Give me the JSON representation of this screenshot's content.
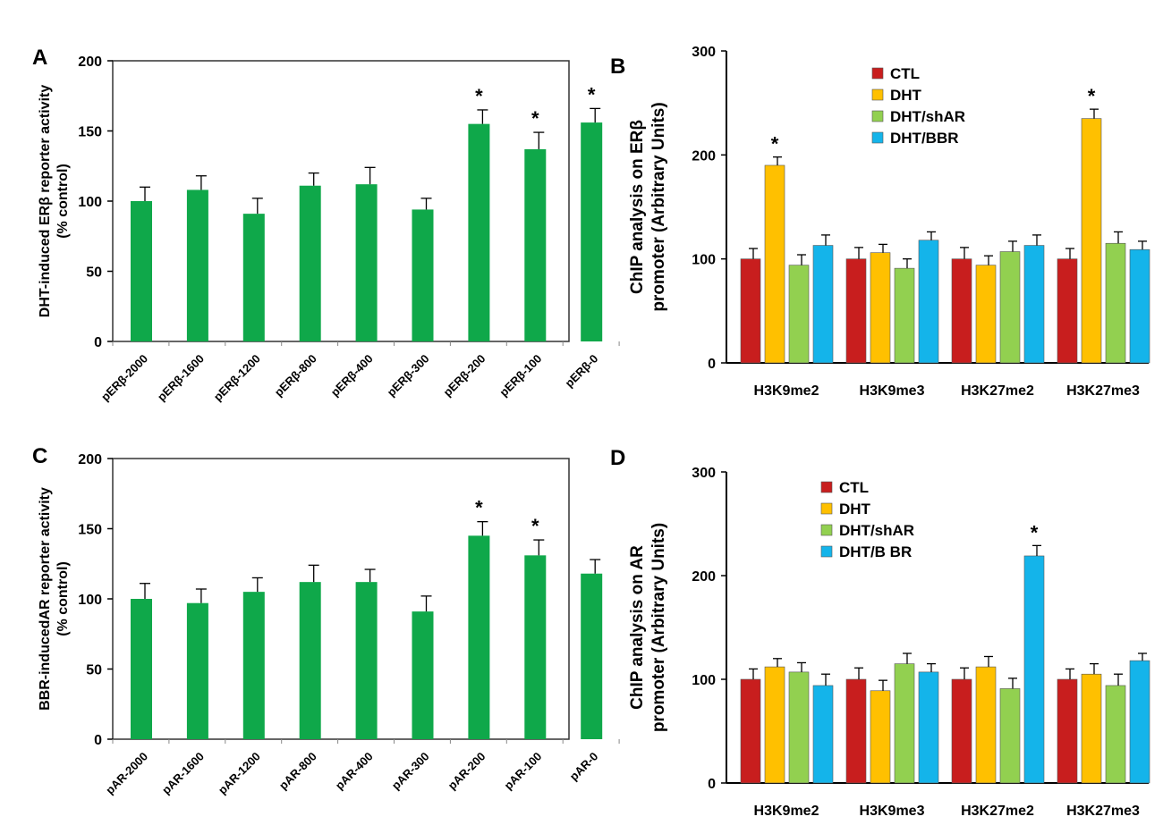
{
  "colors": {
    "green_bar": "#0fa84a",
    "CTL": "#c81e1e",
    "DHT": "#ffc000",
    "DHT/shAR": "#92d050",
    "DHT/BBR": "#14b4ea",
    "axis": "#000000"
  },
  "chart_data": [
    {
      "panel": "A",
      "type": "bar",
      "ylabel_lines": [
        "DHT-induced ERβ reporter activity",
        "(% control)"
      ],
      "ylim": [
        0,
        200
      ],
      "yticks": [
        0,
        50,
        100,
        150,
        200
      ],
      "categories": [
        "pERβ-2000",
        "pERβ-1600",
        "pERβ-1200",
        "pERβ-800",
        "pERβ-400",
        "pERβ-300",
        "pERβ-200",
        "pERβ-100",
        "pERβ-0"
      ],
      "values": [
        100,
        108,
        91,
        111,
        112,
        94,
        155,
        137,
        156
      ],
      "errors": [
        10,
        10,
        11,
        9,
        12,
        8,
        10,
        12,
        10
      ],
      "significance": [
        "",
        "",
        "",
        "",
        "",
        "",
        "*",
        "*",
        "*"
      ],
      "boxed": true
    },
    {
      "panel": "B",
      "type": "bar",
      "ylabel_lines": [
        "ChIP analysis on ERβ",
        "promoter (Arbitrary Units)"
      ],
      "ylim": [
        0,
        300
      ],
      "yticks": [
        0,
        100,
        200,
        300
      ],
      "categories": [
        "H3K9me2",
        "H3K9me3",
        "H3K27me2",
        "H3K27me3"
      ],
      "legend": [
        "CTL",
        "DHT",
        "DHT/shAR",
        "DHT/BBR"
      ],
      "series": [
        {
          "name": "CTL",
          "values": [
            100,
            100,
            100,
            100
          ],
          "errors": [
            10,
            11,
            11,
            10
          ],
          "significance": [
            "",
            "",
            "",
            ""
          ]
        },
        {
          "name": "DHT",
          "values": [
            190,
            106,
            94,
            235
          ],
          "errors": [
            8,
            8,
            9,
            9
          ],
          "significance": [
            "*",
            "",
            "",
            "*"
          ]
        },
        {
          "name": "DHT/shAR",
          "values": [
            94,
            91,
            107,
            115
          ],
          "errors": [
            10,
            9,
            10,
            11
          ],
          "significance": [
            "",
            "",
            "",
            ""
          ]
        },
        {
          "name": "DHT/BBR",
          "values": [
            113,
            118,
            113,
            109
          ],
          "errors": [
            10,
            8,
            10,
            8
          ],
          "significance": [
            "",
            "",
            "",
            ""
          ]
        }
      ],
      "boxed": false
    },
    {
      "panel": "C",
      "type": "bar",
      "ylabel_lines": [
        "BBR-inducedAR reporter activity",
        "(% control)"
      ],
      "ylim": [
        0,
        200
      ],
      "yticks": [
        0,
        50,
        100,
        150,
        200
      ],
      "categories": [
        "pAR-2000",
        "pAR-1600",
        "pAR-1200",
        "pAR-800",
        "pAR-400",
        "pAR-300",
        "pAR-200",
        "pAR-100",
        "pAR-0"
      ],
      "values": [
        100,
        97,
        105,
        112,
        112,
        91,
        145,
        131,
        118
      ],
      "errors": [
        11,
        10,
        10,
        12,
        9,
        11,
        10,
        11,
        10
      ],
      "significance": [
        "",
        "",
        "",
        "",
        "",
        "",
        "*",
        "*",
        ""
      ],
      "boxed": true
    },
    {
      "panel": "D",
      "type": "bar",
      "ylabel_lines": [
        "ChIP analysis on AR",
        "promoter (Arbitrary Units)"
      ],
      "ylim": [
        0,
        300
      ],
      "yticks": [
        0,
        100,
        200,
        300
      ],
      "categories": [
        "H3K9me2",
        "H3K9me3",
        "H3K27me2",
        "H3K27me3"
      ],
      "legend": [
        "CTL",
        "DHT",
        "DHT/shAR",
        "DHT/B BR"
      ],
      "series": [
        {
          "name": "CTL",
          "values": [
            100,
            100,
            100,
            100
          ],
          "errors": [
            10,
            11,
            11,
            10
          ],
          "significance": [
            "",
            "",
            "",
            ""
          ]
        },
        {
          "name": "DHT",
          "values": [
            112,
            89,
            112,
            105
          ],
          "errors": [
            8,
            10,
            10,
            10
          ],
          "significance": [
            "",
            "",
            "",
            ""
          ]
        },
        {
          "name": "DHT/shAR",
          "values": [
            107,
            115,
            91,
            94
          ],
          "errors": [
            9,
            10,
            10,
            11
          ],
          "significance": [
            "",
            "",
            "",
            ""
          ]
        },
        {
          "name": "DHT/BBR",
          "values": [
            94,
            107,
            219,
            118
          ],
          "errors": [
            11,
            8,
            10,
            7
          ],
          "significance": [
            "",
            "",
            "*",
            ""
          ]
        }
      ],
      "boxed": false
    }
  ]
}
